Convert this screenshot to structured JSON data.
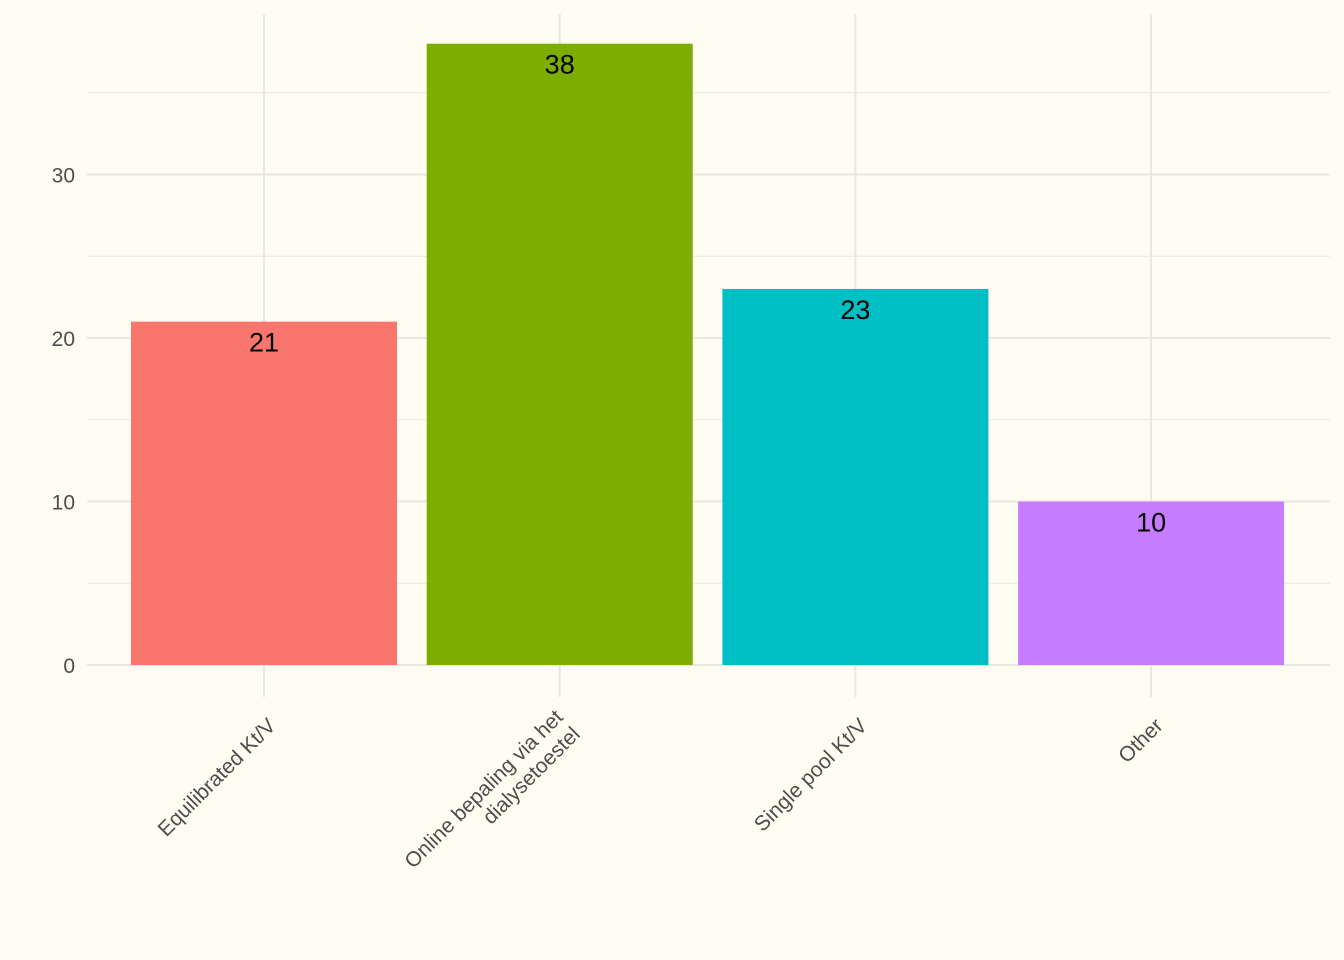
{
  "chart_data": {
    "type": "bar",
    "categories": [
      "Equilibrated Kt/V",
      "Online bepaling via het\ndialysetoestel",
      "Single pool Kt/V",
      "Other"
    ],
    "values": [
      21,
      38,
      23,
      10
    ],
    "data_labels": [
      "21",
      "38",
      "23",
      "10"
    ],
    "bar_colors": [
      "#f8766d",
      "#7cae00",
      "#00bfc4",
      "#c77cff"
    ],
    "y_ticks": [
      0,
      10,
      20,
      30
    ],
    "ylim": [
      0,
      40
    ],
    "grid": true,
    "legend": "none",
    "background": "#fffdf2",
    "gridline_color": "#e8e8e0"
  }
}
